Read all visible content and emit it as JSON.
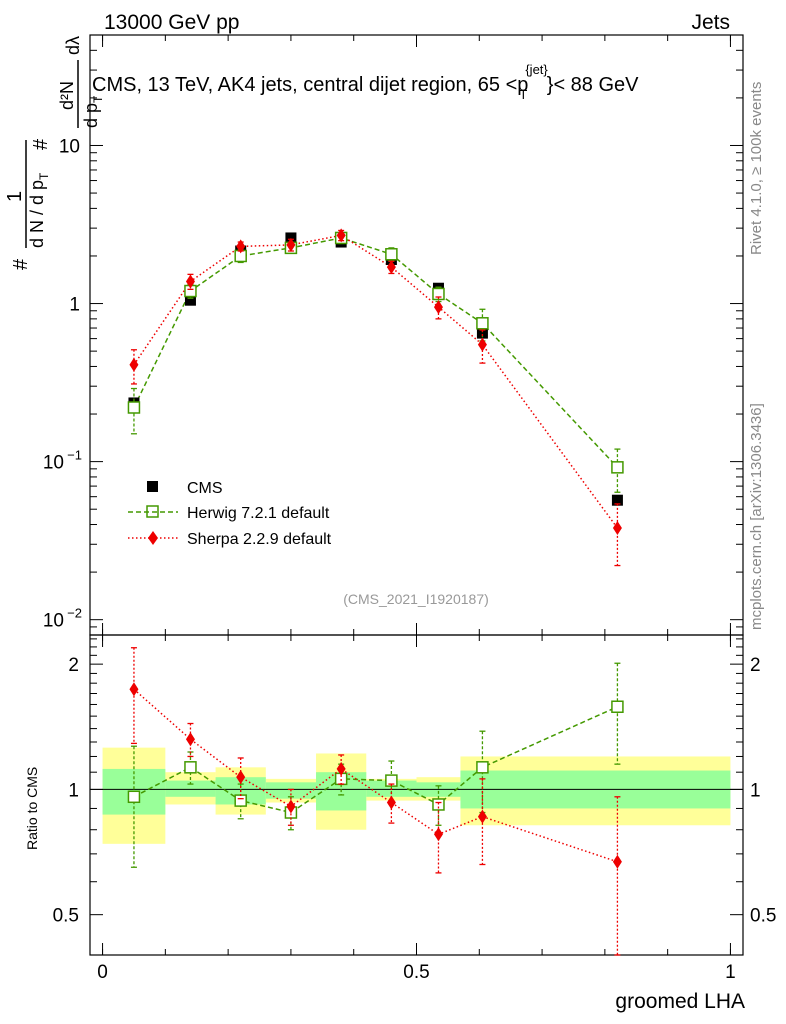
{
  "chart_data": {
    "type": "scatter",
    "header_left": "13000 GeV pp",
    "header_right": "Jets",
    "title": "CMS, 13 TeV, AK4 jets, central dijet region, 65 <p_T^{jet}> < 88 GeV",
    "title_parts": {
      "before": "CMS, 13 TeV, AK4 jets, central dijet region, 65 <",
      "p": "p",
      "sub": "T",
      "sup": "{jet}",
      "after": "}< 88 GeV"
    },
    "ylabel": "1/N dN/dp_T d²N/dp_T dλ",
    "ylabel_parts": {
      "hash": "#",
      "one": "1",
      "dN": "d N / d p",
      "dN_sub": "T",
      "d2N": "d²N",
      "dpT": "d p",
      "dpT_sub": "T",
      "dlambda": "dλ"
    },
    "xlabel": "groomed LHA",
    "ratio_ylabel": "Ratio to CMS",
    "analysis_id": "(CMS_2021_I1920187)",
    "side_right_top": "Rivet 4.1.0, ≥ 100k events",
    "side_right_bottom": "mcplots.cern.ch [arXiv:1306.3436]",
    "xlim": [
      -0.02,
      1.02
    ],
    "ylim": [
      0.008,
      50
    ],
    "ratio_ylim": [
      0.4,
      2.35
    ],
    "x_ticks": [
      0,
      0.5,
      1
    ],
    "x_tick_labels": [
      "0",
      "0.5",
      "1"
    ],
    "y_ticks": [
      {
        "value": 10,
        "label": "10",
        "exp": ""
      },
      {
        "value": 1,
        "label": "1",
        "exp": ""
      },
      {
        "value": 0.1,
        "label": "10",
        "exp": "−1"
      },
      {
        "value": 0.01,
        "label": "10",
        "exp": "−2"
      }
    ],
    "ratio_ticks": [
      {
        "value": 0.5,
        "label": "0.5"
      },
      {
        "value": 1,
        "label": "1"
      },
      {
        "value": 2,
        "label": "2"
      }
    ],
    "bin_edges": [
      0,
      0.1,
      0.18,
      0.26,
      0.34,
      0.42,
      0.5,
      0.57,
      1.0
    ],
    "legend": [
      "CMS",
      "Herwig 7.2.1 default",
      "Sherpa 2.2.9 default"
    ],
    "series": [
      {
        "name": "CMS",
        "color": "#000000",
        "marker": "square-filled",
        "x": [
          0.05,
          0.14,
          0.22,
          0.3,
          0.38,
          0.46,
          0.535,
          0.605,
          0.82
        ],
        "y": [
          0.235,
          1.05,
          2.15,
          2.6,
          2.45,
          1.9,
          1.25,
          0.65,
          0.057
        ]
      },
      {
        "name": "Herwig 7.2.1 default",
        "color": "#449900",
        "marker": "square-open",
        "line": "dashed",
        "x": [
          0.05,
          0.14,
          0.22,
          0.3,
          0.38,
          0.46,
          0.535,
          0.605,
          0.82
        ],
        "y": [
          0.22,
          1.2,
          2.0,
          2.25,
          2.6,
          2.05,
          1.15,
          0.75,
          0.092
        ],
        "err": [
          0.07,
          0.12,
          0.18,
          0.15,
          0.2,
          0.2,
          0.12,
          0.17,
          0.028
        ]
      },
      {
        "name": "Sherpa 2.2.9 default",
        "color": "#ee0000",
        "marker": "diamond",
        "line": "dotted",
        "x": [
          0.05,
          0.14,
          0.22,
          0.3,
          0.38,
          0.46,
          0.535,
          0.605,
          0.82
        ],
        "y": [
          0.41,
          1.38,
          2.3,
          2.35,
          2.7,
          1.7,
          0.95,
          0.55,
          0.038
        ],
        "err": [
          0.1,
          0.15,
          0.15,
          0.2,
          0.2,
          0.15,
          0.15,
          0.13,
          0.016
        ]
      }
    ],
    "ratio_band_inner": [
      [
        0.87,
        1.12
      ],
      [
        0.96,
        1.05
      ],
      [
        0.92,
        1.07
      ],
      [
        0.95,
        1.04
      ],
      [
        0.89,
        1.1
      ],
      [
        0.96,
        1.05
      ],
      [
        0.96,
        1.04
      ],
      [
        0.9,
        1.11
      ],
      [
        0.9,
        1.11
      ]
    ],
    "ratio_band_outer": [
      [
        0.74,
        1.26
      ],
      [
        0.92,
        1.1
      ],
      [
        0.87,
        1.13
      ],
      [
        0.93,
        1.06
      ],
      [
        0.8,
        1.22
      ],
      [
        0.94,
        1.06
      ],
      [
        0.94,
        1.07
      ],
      [
        0.82,
        1.2
      ],
      [
        0.82,
        1.2
      ]
    ],
    "ratio_series": [
      {
        "name": "Herwig 7.2.1 default",
        "color": "#449900",
        "x": [
          0.05,
          0.14,
          0.22,
          0.3,
          0.38,
          0.46,
          0.535,
          0.605,
          0.82
        ],
        "y": [
          0.96,
          1.13,
          0.94,
          0.88,
          1.06,
          1.05,
          0.92,
          1.13,
          1.58
        ],
        "err": [
          0.31,
          0.1,
          0.09,
          0.08,
          0.09,
          0.12,
          0.1,
          0.25,
          0.43
        ]
      },
      {
        "name": "Sherpa 2.2.9 default",
        "color": "#ee0000",
        "x": [
          0.05,
          0.14,
          0.22,
          0.3,
          0.38,
          0.46,
          0.535,
          0.605,
          0.82
        ],
        "y": [
          1.74,
          1.32,
          1.07,
          0.91,
          1.12,
          0.93,
          0.78,
          0.86,
          0.67
        ],
        "err": [
          0.45,
          0.12,
          0.12,
          0.09,
          0.09,
          0.1,
          0.15,
          0.2,
          0.29
        ]
      }
    ]
  }
}
